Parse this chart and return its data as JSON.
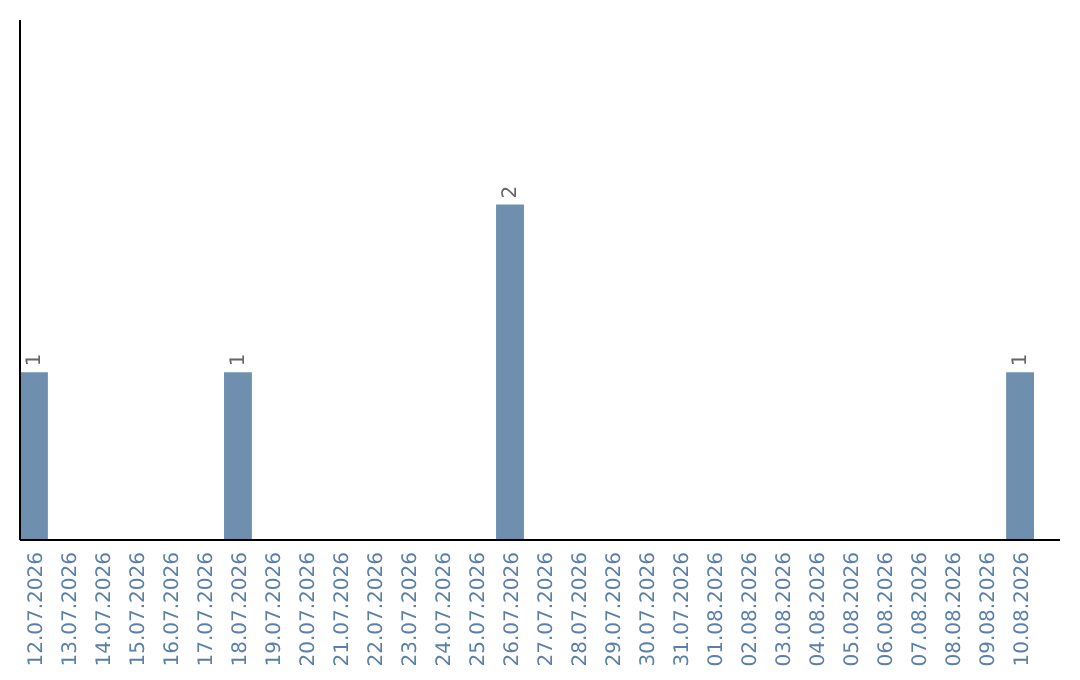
{
  "chart_data": {
    "type": "bar",
    "categories": [
      "12.07.2026",
      "13.07.2026",
      "14.07.2026",
      "15.07.2026",
      "16.07.2026",
      "17.07.2026",
      "18.07.2026",
      "19.07.2026",
      "20.07.2026",
      "21.07.2026",
      "22.07.2026",
      "23.07.2026",
      "24.07.2026",
      "25.07.2026",
      "26.07.2026",
      "27.07.2026",
      "28.07.2026",
      "29.07.2026",
      "30.07.2026",
      "31.07.2026",
      "01.08.2026",
      "02.08.2026",
      "03.08.2026",
      "04.08.2026",
      "05.08.2026",
      "06.08.2026",
      "07.08.2026",
      "08.08.2026",
      "09.08.2026",
      "10.08.2026"
    ],
    "values": [
      1,
      0,
      0,
      0,
      0,
      0,
      1,
      0,
      0,
      0,
      0,
      0,
      0,
      0,
      2,
      0,
      0,
      0,
      0,
      0,
      0,
      0,
      0,
      0,
      0,
      0,
      0,
      0,
      0,
      1
    ],
    "value_labels": [
      "1",
      null,
      null,
      null,
      null,
      null,
      "1",
      null,
      null,
      null,
      null,
      null,
      null,
      null,
      "2",
      null,
      null,
      null,
      null,
      null,
      null,
      null,
      null,
      null,
      null,
      null,
      null,
      null,
      null,
      "1"
    ],
    "color": "#6f8fae",
    "grid": false
  }
}
